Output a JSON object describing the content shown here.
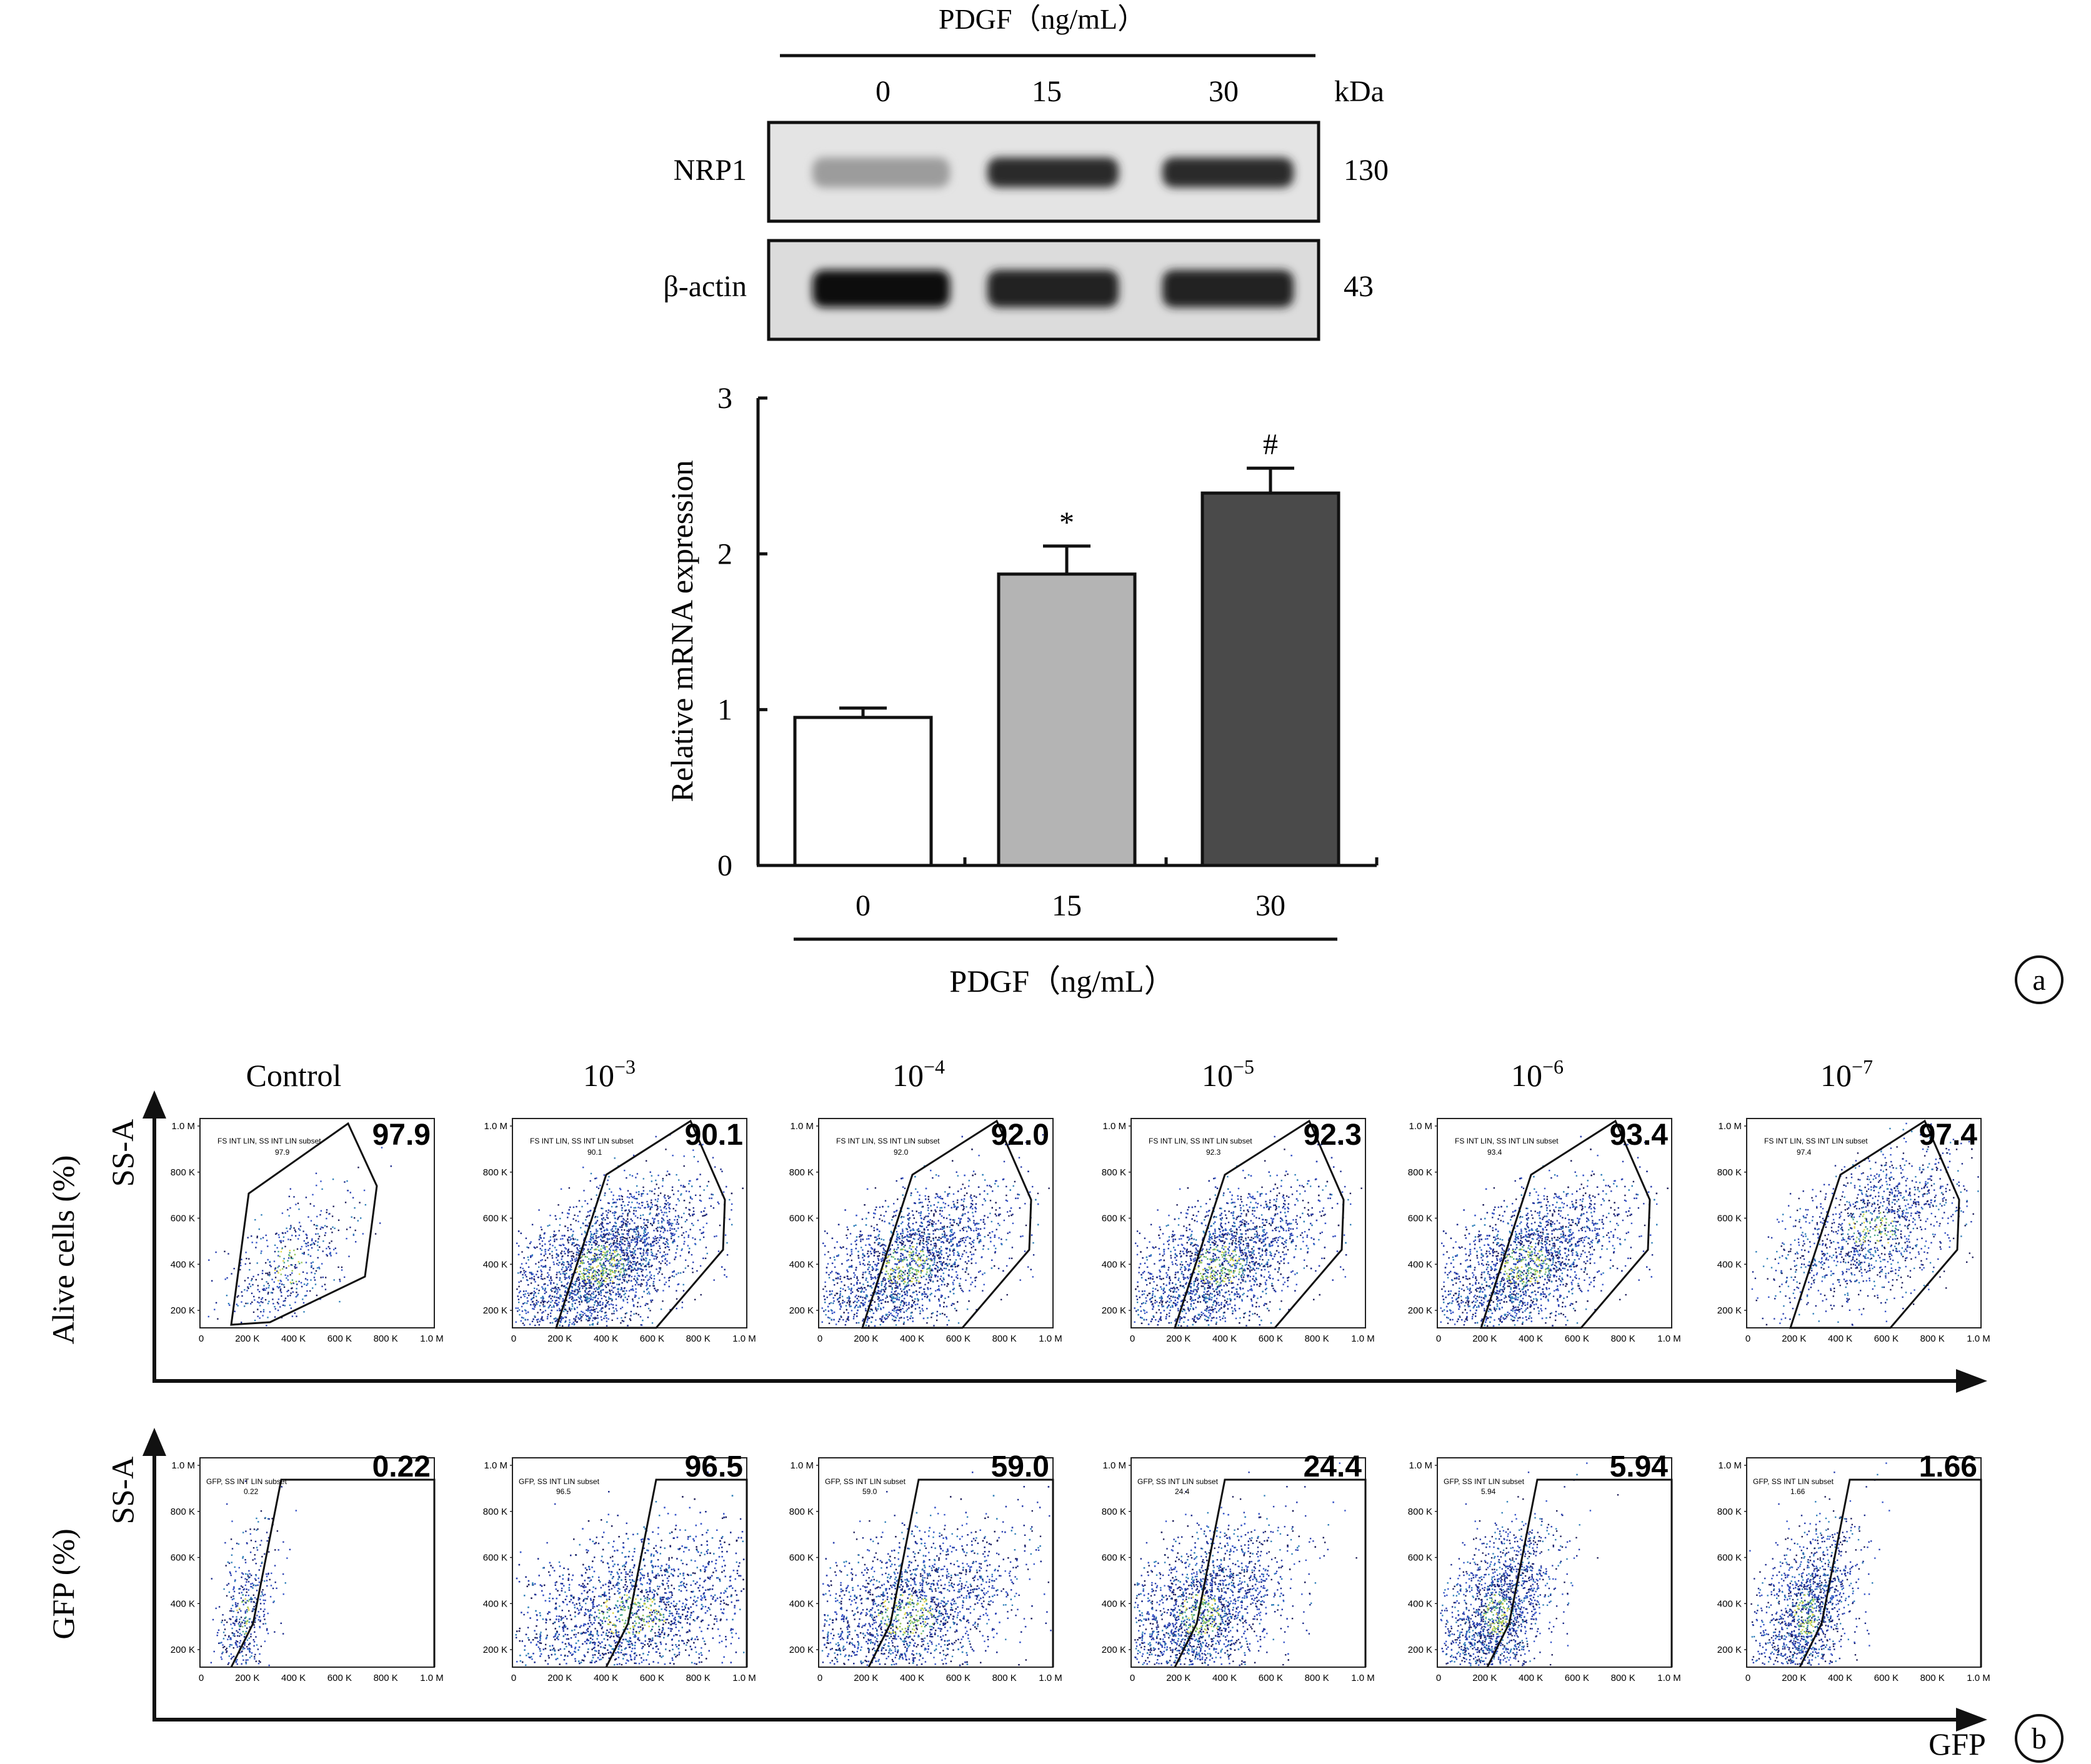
{
  "western_blot": {
    "treatment_label": "PDGF（ng/mL）",
    "lanes": [
      "0",
      "15",
      "30"
    ],
    "mw_unit": "kDa",
    "rows": [
      {
        "name": "NRP1",
        "mw": "130",
        "band_intensity": [
          0.35,
          0.85,
          0.85
        ]
      },
      {
        "name": "β-actin",
        "mw": "43",
        "band_intensity": [
          1.0,
          0.9,
          0.9
        ]
      }
    ]
  },
  "panel_a_label": "a",
  "panel_b_label": "b",
  "chart_data": [
    {
      "type": "bar",
      "categories": [
        "0",
        "15",
        "30"
      ],
      "values": [
        0.95,
        1.87,
        2.39
      ],
      "errors": [
        0.06,
        0.18,
        0.16
      ],
      "significance": [
        "",
        "*",
        "#"
      ],
      "bar_colors": [
        "#ffffff",
        "#b4b4b4",
        "#4a4a4a"
      ],
      "ylabel": "Relative mRNA expression",
      "xlabel": "PDGF（ng/mL）",
      "ylim": [
        0,
        3
      ],
      "yticks": [
        "0",
        "1",
        "2",
        "3"
      ]
    },
    {
      "type": "scatter",
      "description_rows": [
        "Alive cells",
        "GFP"
      ],
      "columns": [
        "Control",
        "10",
        "10",
        "10",
        "10",
        "10"
      ],
      "column_exponents": [
        "",
        "−3",
        "−4",
        "−5",
        "−6",
        "−7"
      ],
      "row_labels": [
        "Alive cells (%)",
        "GFP (%)"
      ],
      "y_axis_label": "SS-A",
      "x_axis_label": "GFP",
      "tick_labels_y": [
        "1.0 M",
        "800 K",
        "600 K",
        "400 K",
        "200 K"
      ],
      "tick_labels_x": [
        "0",
        "200 K",
        "400 K",
        "600 K",
        "800 K",
        "1.0 M"
      ],
      "alive_percent": [
        "97.9",
        "90.1",
        "92.0",
        "92.3",
        "93.4",
        "97.4"
      ],
      "alive_gate_text": [
        "FS INT LIN, SS INT LIN subset",
        "FS INT LIN, SS INT LIN subset",
        "FS INT LIN, SS INT LIN subset",
        "FS INT LIN, SS INT LIN subset",
        "FS INT LIN, SS INT LIN subset",
        "FS INT LIN, SS INT LIN subset"
      ],
      "alive_gate_value": [
        "97.9",
        "90.1",
        "92.0",
        "92.3",
        "93.4",
        "97.4"
      ],
      "gfp_percent": [
        "0.22",
        "96.5",
        "59.0",
        "24.4",
        "5.94",
        "1.66"
      ],
      "gfp_gate_text": [
        "GFP, SS INT LIN subset",
        "GFP, SS INT LIN subset",
        "GFP, SS INT LIN subset",
        "GFP, SS INT LIN subset",
        "GFP, SS INT LIN subset",
        "GFP, SS INT LIN subset"
      ],
      "gfp_gate_value": [
        "0.22",
        "96.5",
        "59.0",
        "24.4",
        "5.94",
        "1.66"
      ]
    }
  ]
}
